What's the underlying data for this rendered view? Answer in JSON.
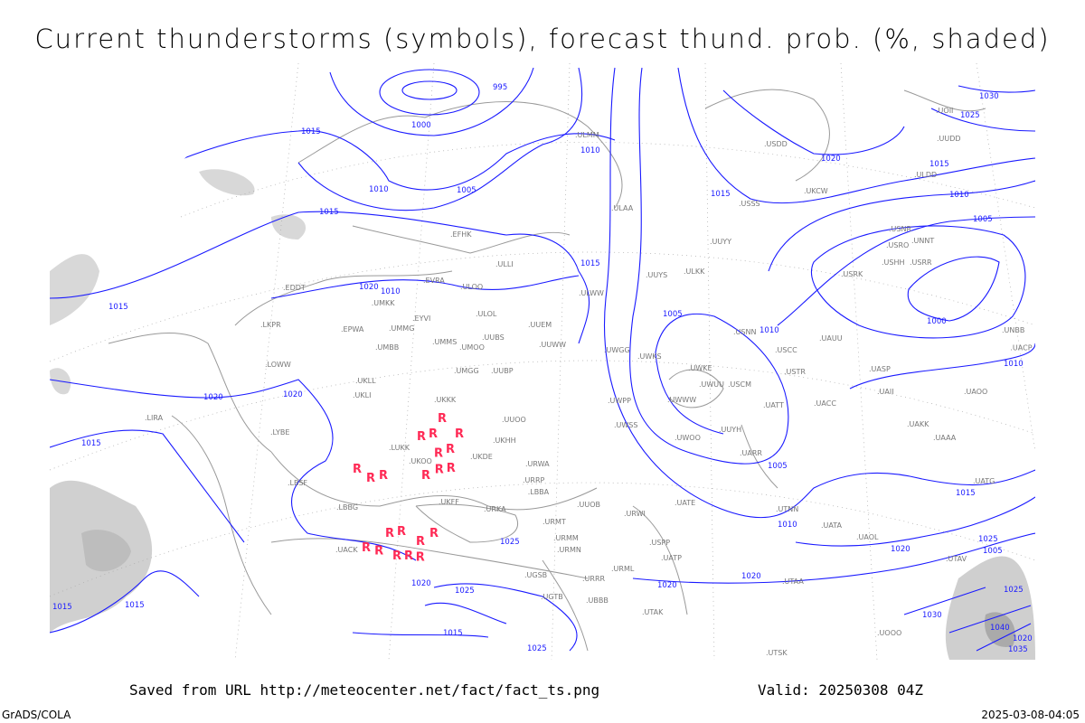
{
  "title": "Current thunderstorms (symbols), forecast thund. prob. (%, shaded)",
  "footer": {
    "saved_from": "Saved from URL http://meteocenter.net/fact/fact_ts.png",
    "valid": "Valid: 20250308 04Z",
    "software": "GrADS/COLA",
    "timestamp": "2025-03-08-04:05"
  },
  "colors": {
    "isobar": "#1a1aff",
    "thunderstorm_symbol": "#ff2a55",
    "coastline": "#999999",
    "shading": "#cccccc"
  },
  "thunderstorm_symbol": "R",
  "isobar_labels": [
    "995",
    "1000",
    "1005",
    "1010",
    "1015",
    "1015",
    "1020",
    "1020",
    "1015",
    "1010",
    "1005",
    "1015",
    "1010",
    "1015",
    "1020",
    "1020",
    "1025",
    "1030",
    "1025",
    "1020",
    "1015",
    "1010",
    "1005",
    "1000",
    "1010",
    "1015",
    "1020",
    "1025",
    "1030",
    "1040",
    "1035",
    "1020",
    "1025",
    "1015",
    "1025",
    "1005",
    "1010",
    "1005",
    "1015",
    "1010",
    "1015",
    "1020",
    "1015",
    "1020",
    "1025"
  ],
  "stations": [
    "ULMM",
    "ULAA",
    "EFHK",
    "ULLI",
    "EVRA",
    "ULOO",
    "EDDT",
    "UMKK",
    "EYVI",
    "ULOL",
    "EPWA",
    "UMMG",
    "UMMS",
    "UMOO",
    "UUBS",
    "UUEM",
    "UUWW",
    "UMBB",
    "UKLL",
    "UMGG",
    "UUBP",
    "UKLI",
    "UKKK",
    "UUOO",
    "UKHH",
    "LUKK",
    "UKOO",
    "UKDE",
    "UKFF",
    "URKA",
    "URRP",
    "URMT",
    "URMM",
    "URMN",
    "URML",
    "UGSB",
    "UGTB",
    "UBBB",
    "UTAK",
    "LBBG",
    "LBSF",
    "LYBE",
    "LIRA",
    "LOWW",
    "LKPR",
    "ULWW",
    "UWGG",
    "UWPP",
    "UWSS",
    "UWKS",
    "UWWW",
    "UWKE",
    "UWUU",
    "USCM",
    "UATT",
    "UARR",
    "UWOO",
    "UUYH",
    "UUYY",
    "ULKK",
    "UUYS",
    "USSS",
    "USCC",
    "USTR",
    "UAUU",
    "UACC",
    "UAKK",
    "UAAA",
    "UATG",
    "UATE",
    "UATP",
    "USPP",
    "USNN",
    "USRR",
    "USHH",
    "USRK",
    "USRO",
    "USNR",
    "UNNT",
    "UNBB",
    "UACP",
    "UASP",
    "UAOO",
    "UAOL",
    "UATA",
    "UTNN",
    "UTAA",
    "UTSK",
    "UOOO",
    "UOII",
    "UUDD",
    "ULDD",
    "USDD",
    "UKCW",
    "URWA",
    "URWI",
    "UUOB",
    "URRR",
    "LBBA",
    "UACK",
    "UAII",
    "UTAV"
  ]
}
